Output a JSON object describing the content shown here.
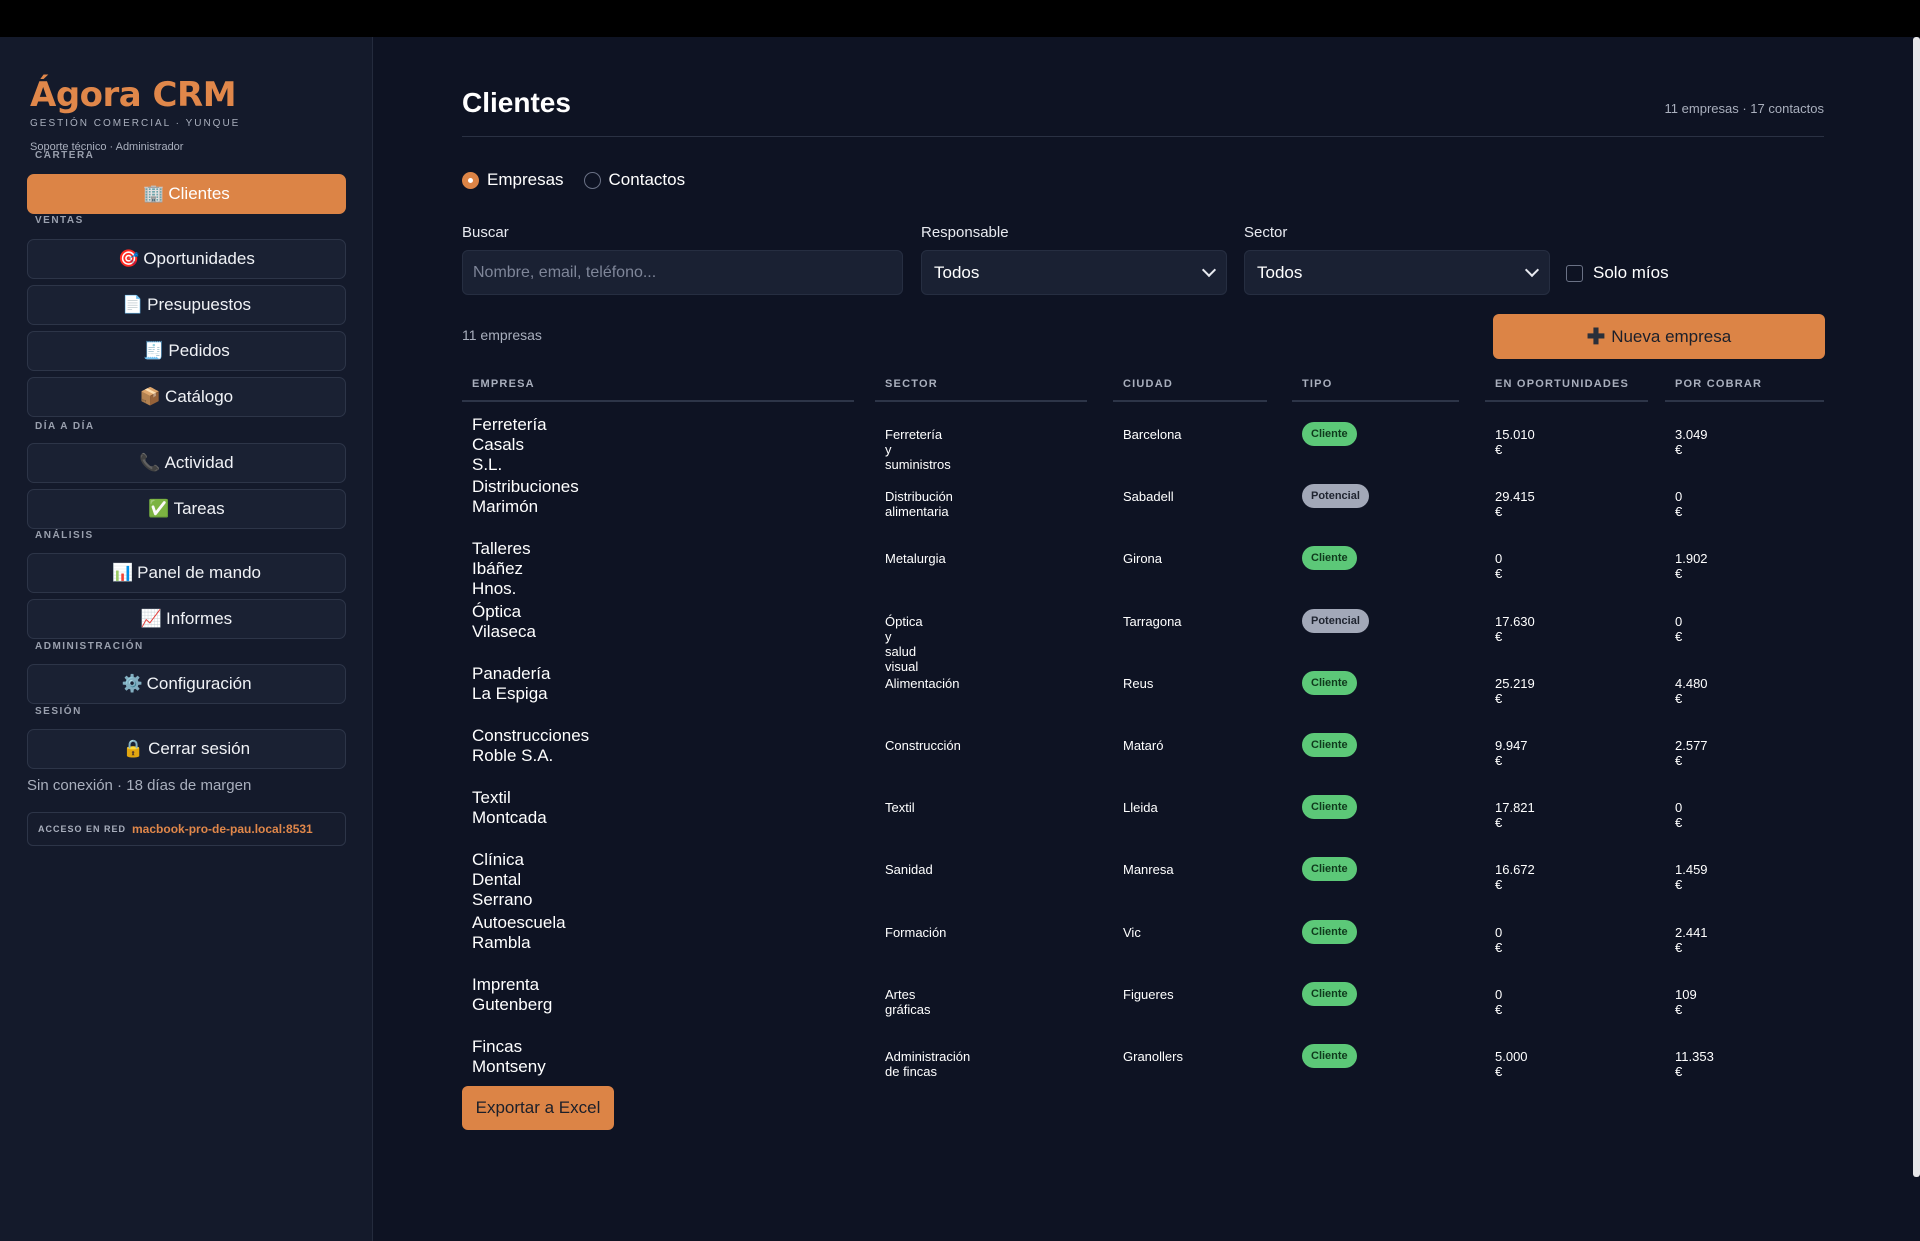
{
  "brand": {
    "title": "Ágora CRM",
    "subtitle": "GESTIÓN COMERCIAL · YUNQUE",
    "user": "Soporte técnico · Administrador",
    "accent": "#e0874a"
  },
  "sidebar": {
    "sections": [
      {
        "label": "CARTERA",
        "items": [
          {
            "icon": "🏢",
            "label": "Clientes",
            "active": true
          }
        ]
      },
      {
        "label": "VENTAS",
        "items": [
          {
            "icon": "🎯",
            "label": "Oportunidades"
          },
          {
            "icon": "📄",
            "label": "Presupuestos"
          },
          {
            "icon": "🧾",
            "label": "Pedidos"
          },
          {
            "icon": "📦",
            "label": "Catálogo"
          }
        ]
      },
      {
        "label": "DÍA A DÍA",
        "items": [
          {
            "icon": "📞",
            "label": "Actividad"
          },
          {
            "icon": "✅",
            "label": "Tareas"
          }
        ]
      },
      {
        "label": "ANÁLISIS",
        "items": [
          {
            "icon": "📊",
            "label": "Panel de mando"
          },
          {
            "icon": "📈",
            "label": "Informes"
          }
        ]
      },
      {
        "label": "ADMINISTRACIÓN",
        "items": [
          {
            "icon": "⚙️",
            "label": "Configuración"
          }
        ]
      },
      {
        "label": "SESIÓN",
        "items": [
          {
            "icon": "🔒",
            "label": "Cerrar sesión"
          }
        ]
      }
    ],
    "offline_text": "Sin conexión · 18 días de margen",
    "network_label": "ACCESO EN RED",
    "network_host": "macbook-pro-de-pau.local:8531"
  },
  "main": {
    "title": "Clientes",
    "count_summary": "11 empresas · 17 contactos",
    "view_toggle": {
      "options": [
        "Empresas",
        "Contactos"
      ],
      "selected": "Empresas"
    },
    "filters": {
      "search_label": "Buscar",
      "search_placeholder": "Nombre, email, teléfono...",
      "search_value": "",
      "owner_label": "Responsable",
      "owner_value": "Todos",
      "sector_label": "Sector",
      "sector_value": "Todos",
      "only_mine_label": "Solo míos"
    },
    "result_count": "11 empresas",
    "new_button": "Nueva empresa",
    "export_button": "Exportar a Excel",
    "columns": [
      "EMPRESA",
      "SECTOR",
      "CIUDAD",
      "TIPO",
      "EN OPORTUNIDADES",
      "POR COBRAR"
    ],
    "rows": [
      {
        "empresa": "Ferretería Casals S.L.",
        "sector": "Ferretería y suministros",
        "ciudad": "Barcelona",
        "tipo": "Cliente",
        "oportunidades": "15.010 €",
        "cobrar": "3.049 €"
      },
      {
        "empresa": "Distribuciones Marimón",
        "sector": "Distribución alimentaria",
        "ciudad": "Sabadell",
        "tipo": "Potencial",
        "oportunidades": "29.415 €",
        "cobrar": "0 €"
      },
      {
        "empresa": "Talleres Ibáñez Hnos.",
        "sector": "Metalurgia",
        "ciudad": "Girona",
        "tipo": "Cliente",
        "oportunidades": "0 €",
        "cobrar": "1.902 €"
      },
      {
        "empresa": "Óptica Vilaseca",
        "sector": "Óptica y salud visual",
        "ciudad": "Tarragona",
        "tipo": "Potencial",
        "oportunidades": "17.630 €",
        "cobrar": "0 €"
      },
      {
        "empresa": "Panadería La Espiga",
        "sector": "Alimentación",
        "ciudad": "Reus",
        "tipo": "Cliente",
        "oportunidades": "25.219 €",
        "cobrar": "4.480 €"
      },
      {
        "empresa": "Construcciones Roble S.A.",
        "sector": "Construcción",
        "ciudad": "Mataró",
        "tipo": "Cliente",
        "oportunidades": "9.947 €",
        "cobrar": "2.577 €"
      },
      {
        "empresa": "Textil Montcada",
        "sector": "Textil",
        "ciudad": "Lleida",
        "tipo": "Cliente",
        "oportunidades": "17.821 €",
        "cobrar": "0 €"
      },
      {
        "empresa": "Clínica Dental Serrano",
        "sector": "Sanidad",
        "ciudad": "Manresa",
        "tipo": "Cliente",
        "oportunidades": "16.672 €",
        "cobrar": "1.459 €"
      },
      {
        "empresa": "Autoescuela Rambla",
        "sector": "Formación",
        "ciudad": "Vic",
        "tipo": "Cliente",
        "oportunidades": "0 €",
        "cobrar": "2.441 €"
      },
      {
        "empresa": "Imprenta Gutenberg",
        "sector": "Artes gráficas",
        "ciudad": "Figueres",
        "tipo": "Cliente",
        "oportunidades": "0 €",
        "cobrar": "109 €"
      },
      {
        "empresa": "Fincas Montseny",
        "sector": "Administración de fincas",
        "ciudad": "Granollers",
        "tipo": "Cliente",
        "oportunidades": "5.000 €",
        "cobrar": "11.353 €"
      }
    ],
    "badge_colors": {
      "Cliente": "#5cc878",
      "Potencial": "#a2a8b8"
    }
  }
}
